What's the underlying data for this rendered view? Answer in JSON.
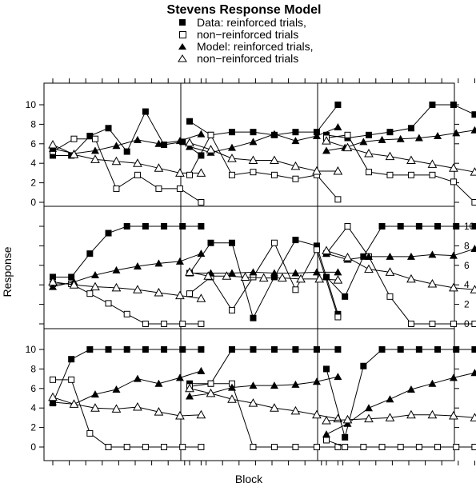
{
  "chart_data": {
    "type": "line",
    "title": "Stevens Response Model",
    "xlabel": "Block",
    "ylabel": "Response",
    "ylim": [
      0,
      10
    ],
    "y_ticks": [
      0,
      2,
      4,
      6,
      8,
      10
    ],
    "x": [
      1,
      2,
      3,
      4,
      5,
      6,
      7,
      8,
      9,
      10
    ],
    "legend": [
      {
        "label": "Data: reinforced trials,",
        "marker": "filled-square"
      },
      {
        "label": "non−reinforced trials",
        "marker": "open-square"
      },
      {
        "label": "Model: reinforced trials,",
        "marker": "filled-triangle"
      },
      {
        "label": "non−reinforced trials",
        "marker": "open-triangle"
      }
    ],
    "panels": [
      {
        "series": [
          {
            "values": [
              4.8,
              4.8,
              6.8,
              7.6,
              5.2,
              9.3,
              5.9,
              6.2,
              4.8
            ]
          },
          {
            "values": [
              5.2,
              6.5,
              6.5,
              1.4,
              2.8,
              1.4,
              1.4,
              0
            ]
          },
          {
            "values": [
              5.5,
              5.0,
              5.3,
              5.8,
              6.4,
              6.0,
              6.3,
              7.0
            ]
          },
          {
            "values": [
              5.9,
              4.9,
              4.4,
              4.2,
              4.0,
              3.5,
              3.0,
              3.0
            ]
          }
        ]
      },
      {
        "series": [
          {
            "values": [
              8.3,
              6.9,
              7.2,
              7.2,
              6.9,
              7.2,
              7.2,
              10
            ]
          },
          {
            "values": [
              2.8,
              6.9,
              2.8,
              3.1,
              2.8,
              2.4,
              2.8,
              0.3
            ]
          },
          {
            "values": [
              5.7,
              5.1,
              5.6,
              6.2,
              7.0,
              6.3,
              6.8,
              7.7
            ]
          },
          {
            "values": [
              6.1,
              5.4,
              4.5,
              4.3,
              4.3,
              3.7,
              3.2,
              3.2
            ]
          }
        ]
      },
      {
        "series": [
          {
            "values": [
              6.9,
              6.6,
              6.9,
              7.2,
              7.6,
              10,
              10,
              9
            ]
          },
          {
            "values": [
              6.6,
              6.9,
              3.1,
              2.8,
              2.8,
              2.8,
              2.1,
              0
            ]
          },
          {
            "values": [
              5.3,
              5.6,
              6.2,
              6.4,
              6.5,
              6.6,
              6.8,
              7.1,
              7.4
            ]
          },
          {
            "values": [
              6.3,
              5.6,
              5.0,
              4.7,
              4.3,
              3.9,
              3.5,
              3.1
            ]
          }
        ]
      },
      {
        "series": [
          {
            "values": [
              4.8,
              4.8,
              7.2,
              9.3,
              10,
              10,
              10,
              10,
              10
            ]
          },
          {
            "values": [
              4.1,
              4.1,
              3.1,
              2.1,
              1.0,
              0,
              0,
              0,
              0
            ]
          },
          {
            "values": [
              3.8,
              4.3,
              5.0,
              5.5,
              5.9,
              6.2,
              6.4,
              7.2
            ]
          },
          {
            "values": [
              4.3,
              4.0,
              3.8,
              3.7,
              3.5,
              3.2,
              2.9,
              2.6
            ]
          }
        ]
      },
      {
        "series": [
          {
            "values": [
              5.2,
              8.3,
              8.3,
              0.6,
              4.8,
              8.6,
              8.0,
              1.0
            ]
          },
          {
            "values": [
              3.1,
              4.8,
              1.4,
              4.8,
              8.3,
              3.5,
              7.6,
              0.7
            ]
          },
          {
            "values": [
              5.2,
              5.2,
              5.2,
              5.3,
              5.2,
              5.2,
              5.3,
              5.3
            ]
          },
          {
            "values": [
              5.3,
              4.9,
              4.9,
              4.8,
              4.7,
              4.7,
              4.6,
              4.6,
              4.5
            ]
          }
        ]
      },
      {
        "series": [
          {
            "values": [
              4.8,
              2.8,
              6.9,
              10,
              10,
              10,
              10,
              10,
              10
            ]
          },
          {
            "values": [
              7.2,
              10,
              6.9,
              2.8,
              0,
              0,
              0,
              0
            ]
          },
          {
            "values": [
              7.2,
              6.6,
              6.9,
              6.9,
              6.9,
              7.1,
              7.0,
              7.7
            ]
          },
          {
            "values": [
              7.5,
              6.8,
              5.6,
              5.3,
              4.6,
              4.1,
              3.7,
              3.5
            ]
          }
        ]
      },
      {
        "series": [
          {
            "values": [
              4.5,
              9.0,
              10,
              10,
              10,
              10,
              10,
              10,
              10
            ]
          },
          {
            "values": [
              6.9,
              6.9,
              1.4,
              0,
              0,
              0,
              0,
              0,
              0
            ]
          },
          {
            "values": [
              4.6,
              4.4,
              5.4,
              5.9,
              7.0,
              6.5,
              7.1,
              7.8
            ]
          },
          {
            "values": [
              5.1,
              4.4,
              4.0,
              3.9,
              4.1,
              3.6,
              3.2,
              3.3
            ]
          }
        ]
      },
      {
        "series": [
          {
            "values": [
              6.5,
              6.5,
              10,
              10,
              10,
              10,
              10,
              10
            ]
          },
          {
            "values": [
              6.2,
              6.5,
              6.5,
              0,
              0,
              0,
              0,
              0
            ]
          },
          {
            "values": [
              5.2,
              5.5,
              6.1,
              6.3,
              6.3,
              6.4,
              6.7,
              7.2
            ]
          },
          {
            "values": [
              6.0,
              5.5,
              4.9,
              4.5,
              4.0,
              3.7,
              3.3,
              2.9
            ]
          }
        ]
      },
      {
        "series": [
          {
            "values": [
              8.0,
              1.0,
              8.3,
              10,
              10,
              10,
              10,
              10,
              10
            ]
          },
          {
            "values": [
              0.7,
              0,
              0,
              0,
              0,
              0,
              0,
              0,
              0
            ]
          },
          {
            "values": [
              1.3,
              2.4,
              4.0,
              4.9,
              5.9,
              6.5,
              7.1,
              7.6
            ]
          },
          {
            "values": [
              2.7,
              2.8,
              2.9,
              3.0,
              3.3,
              3.3,
              3.2,
              3.0
            ]
          }
        ]
      }
    ]
  }
}
